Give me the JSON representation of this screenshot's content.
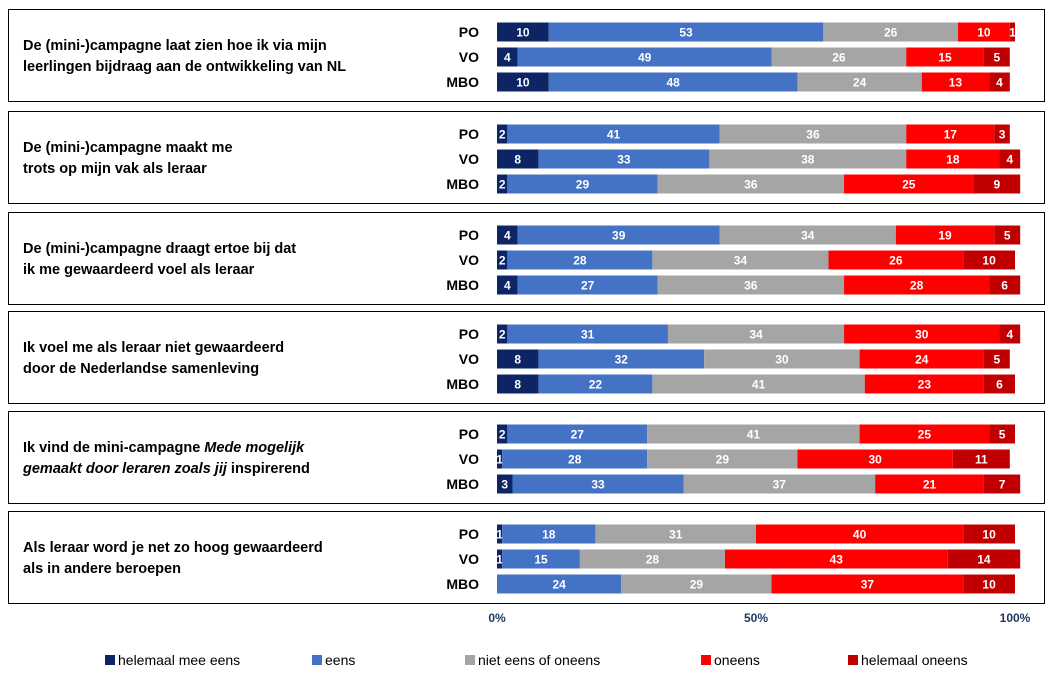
{
  "chart_data": {
    "type": "bar",
    "orientation": "horizontal-stacked-100",
    "groups": [
      "PO",
      "VO",
      "MBO"
    ],
    "series_names": [
      "helemaal mee eens",
      "eens",
      "niet eens of oneens",
      "oneens",
      "helemaal oneens"
    ],
    "colors": [
      "#0d2565",
      "#4472c4",
      "#a5a5a5",
      "#ff0000",
      "#c00000"
    ],
    "xlim": [
      0,
      100
    ],
    "x_ticks": [
      "0%",
      "50%",
      "100%"
    ],
    "questions": [
      {
        "lines": [
          {
            "t": "De (mini-)campagne laat zien hoe ik via mijn"
          },
          {
            "t": "leerlingen bijdraag aan de ontwikkeling van NL"
          }
        ],
        "values": [
          [
            10,
            53,
            26,
            10,
            1
          ],
          [
            4,
            49,
            26,
            15,
            5
          ],
          [
            10,
            48,
            24,
            13,
            4
          ]
        ]
      },
      {
        "lines": [
          {
            "t": "De (mini-)campagne maakt me"
          },
          {
            "t": "trots op mijn vak als leraar"
          }
        ],
        "values": [
          [
            2,
            41,
            36,
            17,
            3
          ],
          [
            8,
            33,
            38,
            18,
            4
          ],
          [
            2,
            29,
            36,
            25,
            9
          ]
        ]
      },
      {
        "lines": [
          {
            "t": "De (mini-)campagne draagt ertoe bij dat"
          },
          {
            "t": "ik me gewaardeerd voel als leraar"
          }
        ],
        "values": [
          [
            4,
            39,
            34,
            19,
            5
          ],
          [
            2,
            28,
            34,
            26,
            10
          ],
          [
            4,
            27,
            36,
            28,
            6
          ]
        ]
      },
      {
        "lines": [
          {
            "t": "Ik voel me als leraar niet gewaardeerd"
          },
          {
            "t": "door de Nederlandse samenleving"
          }
        ],
        "values": [
          [
            2,
            31,
            34,
            30,
            4
          ],
          [
            8,
            32,
            30,
            24,
            5
          ],
          [
            8,
            22,
            41,
            23,
            6
          ]
        ]
      },
      {
        "lines": [
          {
            "t": "Ik vind de mini-campagne ",
            "t2": "Mede mogelijk"
          },
          {
            "t2": "gemaakt door leraren zoals jij",
            "t3": " inspirerend"
          }
        ],
        "values": [
          [
            2,
            27,
            41,
            25,
            5
          ],
          [
            1,
            28,
            29,
            30,
            11
          ],
          [
            3,
            33,
            37,
            21,
            7
          ]
        ]
      },
      {
        "lines": [
          {
            "t": "Als leraar word je net zo hoog gewaardeerd"
          },
          {
            "t": "als in andere beroepen"
          }
        ],
        "values": [
          [
            1,
            18,
            31,
            40,
            10
          ],
          [
            1,
            15,
            28,
            43,
            14
          ],
          [
            0,
            24,
            29,
            37,
            10
          ]
        ]
      }
    ]
  }
}
